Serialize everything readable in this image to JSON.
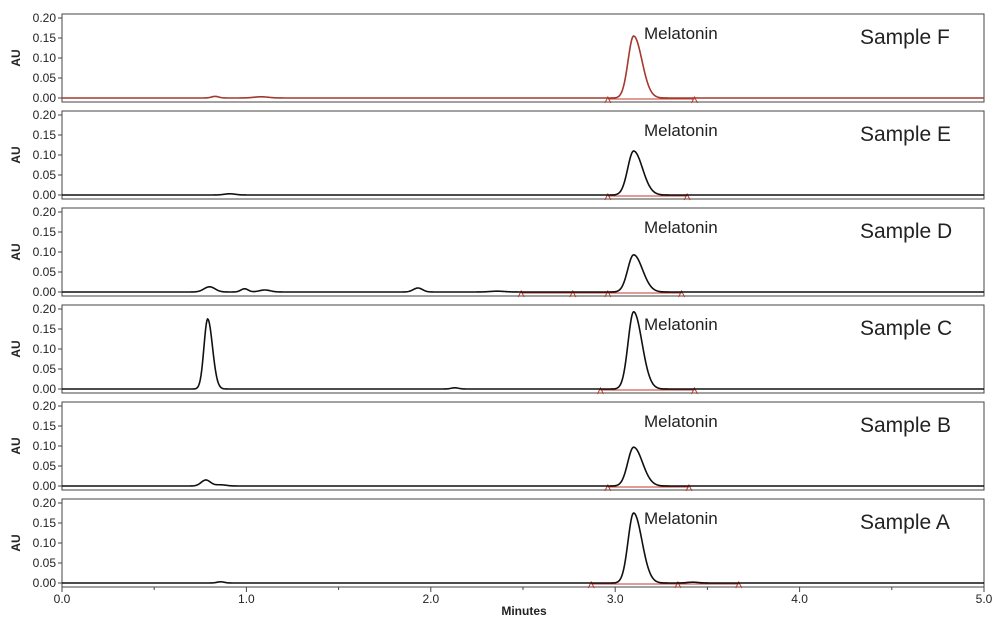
{
  "chart_data": {
    "type": "line",
    "xlabel": "Minutes",
    "ylabel": "AU",
    "xlim": [
      0.0,
      5.0
    ],
    "ylim": [
      -0.01,
      0.21
    ],
    "x_ticks": [
      "0.0",
      "1.0",
      "2.0",
      "3.0",
      "4.0",
      "5.0"
    ],
    "x_tick_values": [
      0,
      1,
      2,
      3,
      4,
      5
    ],
    "y_ticks": [
      "0.20",
      "0.15",
      "0.10",
      "0.05",
      "0.00"
    ],
    "y_tick_values": [
      0.2,
      0.15,
      0.1,
      0.05,
      0.0
    ],
    "grid": false,
    "colors": {
      "trace": "#111111",
      "integration": "#c0392b",
      "frame": "#444444"
    },
    "panels": [
      {
        "sample_label": "Sample F",
        "peak_label": "Melatonin",
        "trace_color": "#a33a2e",
        "peaks": [
          {
            "center": 3.1,
            "height": 0.155,
            "width": 0.03,
            "tail": 1.5
          },
          {
            "center": 0.83,
            "height": 0.004,
            "width": 0.02
          },
          {
            "center": 1.08,
            "height": 0.003,
            "width": 0.04
          }
        ],
        "baseline_marks": [
          2.96,
          3.43
        ]
      },
      {
        "sample_label": "Sample E",
        "peak_label": "Melatonin",
        "trace_color": "#111111",
        "peaks": [
          {
            "center": 3.1,
            "height": 0.11,
            "width": 0.032,
            "tail": 1.5
          },
          {
            "center": 0.91,
            "height": 0.003,
            "width": 0.03
          }
        ],
        "baseline_marks": [
          2.96,
          3.39
        ]
      },
      {
        "sample_label": "Sample D",
        "peak_label": "Melatonin",
        "trace_color": "#111111",
        "peaks": [
          {
            "center": 3.1,
            "height": 0.093,
            "width": 0.032,
            "tail": 1.5
          },
          {
            "center": 0.8,
            "height": 0.013,
            "width": 0.03
          },
          {
            "center": 0.99,
            "height": 0.008,
            "width": 0.02
          },
          {
            "center": 1.1,
            "height": 0.005,
            "width": 0.03
          },
          {
            "center": 1.93,
            "height": 0.01,
            "width": 0.025
          },
          {
            "center": 2.36,
            "height": 0.002,
            "width": 0.04
          }
        ],
        "baseline_marks": [
          2.49,
          2.77,
          2.96,
          3.36
        ]
      },
      {
        "sample_label": "Sample C",
        "peak_label": "Melatonin",
        "trace_color": "#111111",
        "peaks": [
          {
            "center": 3.1,
            "height": 0.193,
            "width": 0.03,
            "tail": 1.5
          },
          {
            "center": 0.79,
            "height": 0.175,
            "width": 0.02,
            "tail": 1.3
          },
          {
            "center": 2.13,
            "height": 0.003,
            "width": 0.02
          }
        ],
        "baseline_marks": [
          2.92,
          3.43
        ]
      },
      {
        "sample_label": "Sample B",
        "peak_label": "Melatonin",
        "trace_color": "#111111",
        "peaks": [
          {
            "center": 3.1,
            "height": 0.097,
            "width": 0.032,
            "tail": 1.5
          },
          {
            "center": 0.78,
            "height": 0.015,
            "width": 0.025
          },
          {
            "center": 0.86,
            "height": 0.003,
            "width": 0.03
          }
        ],
        "baseline_marks": [
          2.96,
          3.4
        ]
      },
      {
        "sample_label": "Sample A",
        "peak_label": "Melatonin",
        "trace_color": "#111111",
        "peaks": [
          {
            "center": 3.1,
            "height": 0.175,
            "width": 0.03,
            "tail": 1.5
          },
          {
            "center": 0.86,
            "height": 0.003,
            "width": 0.02
          },
          {
            "center": 3.42,
            "height": 0.002,
            "width": 0.03
          }
        ],
        "baseline_marks": [
          2.87,
          3.34,
          3.67
        ]
      }
    ]
  }
}
